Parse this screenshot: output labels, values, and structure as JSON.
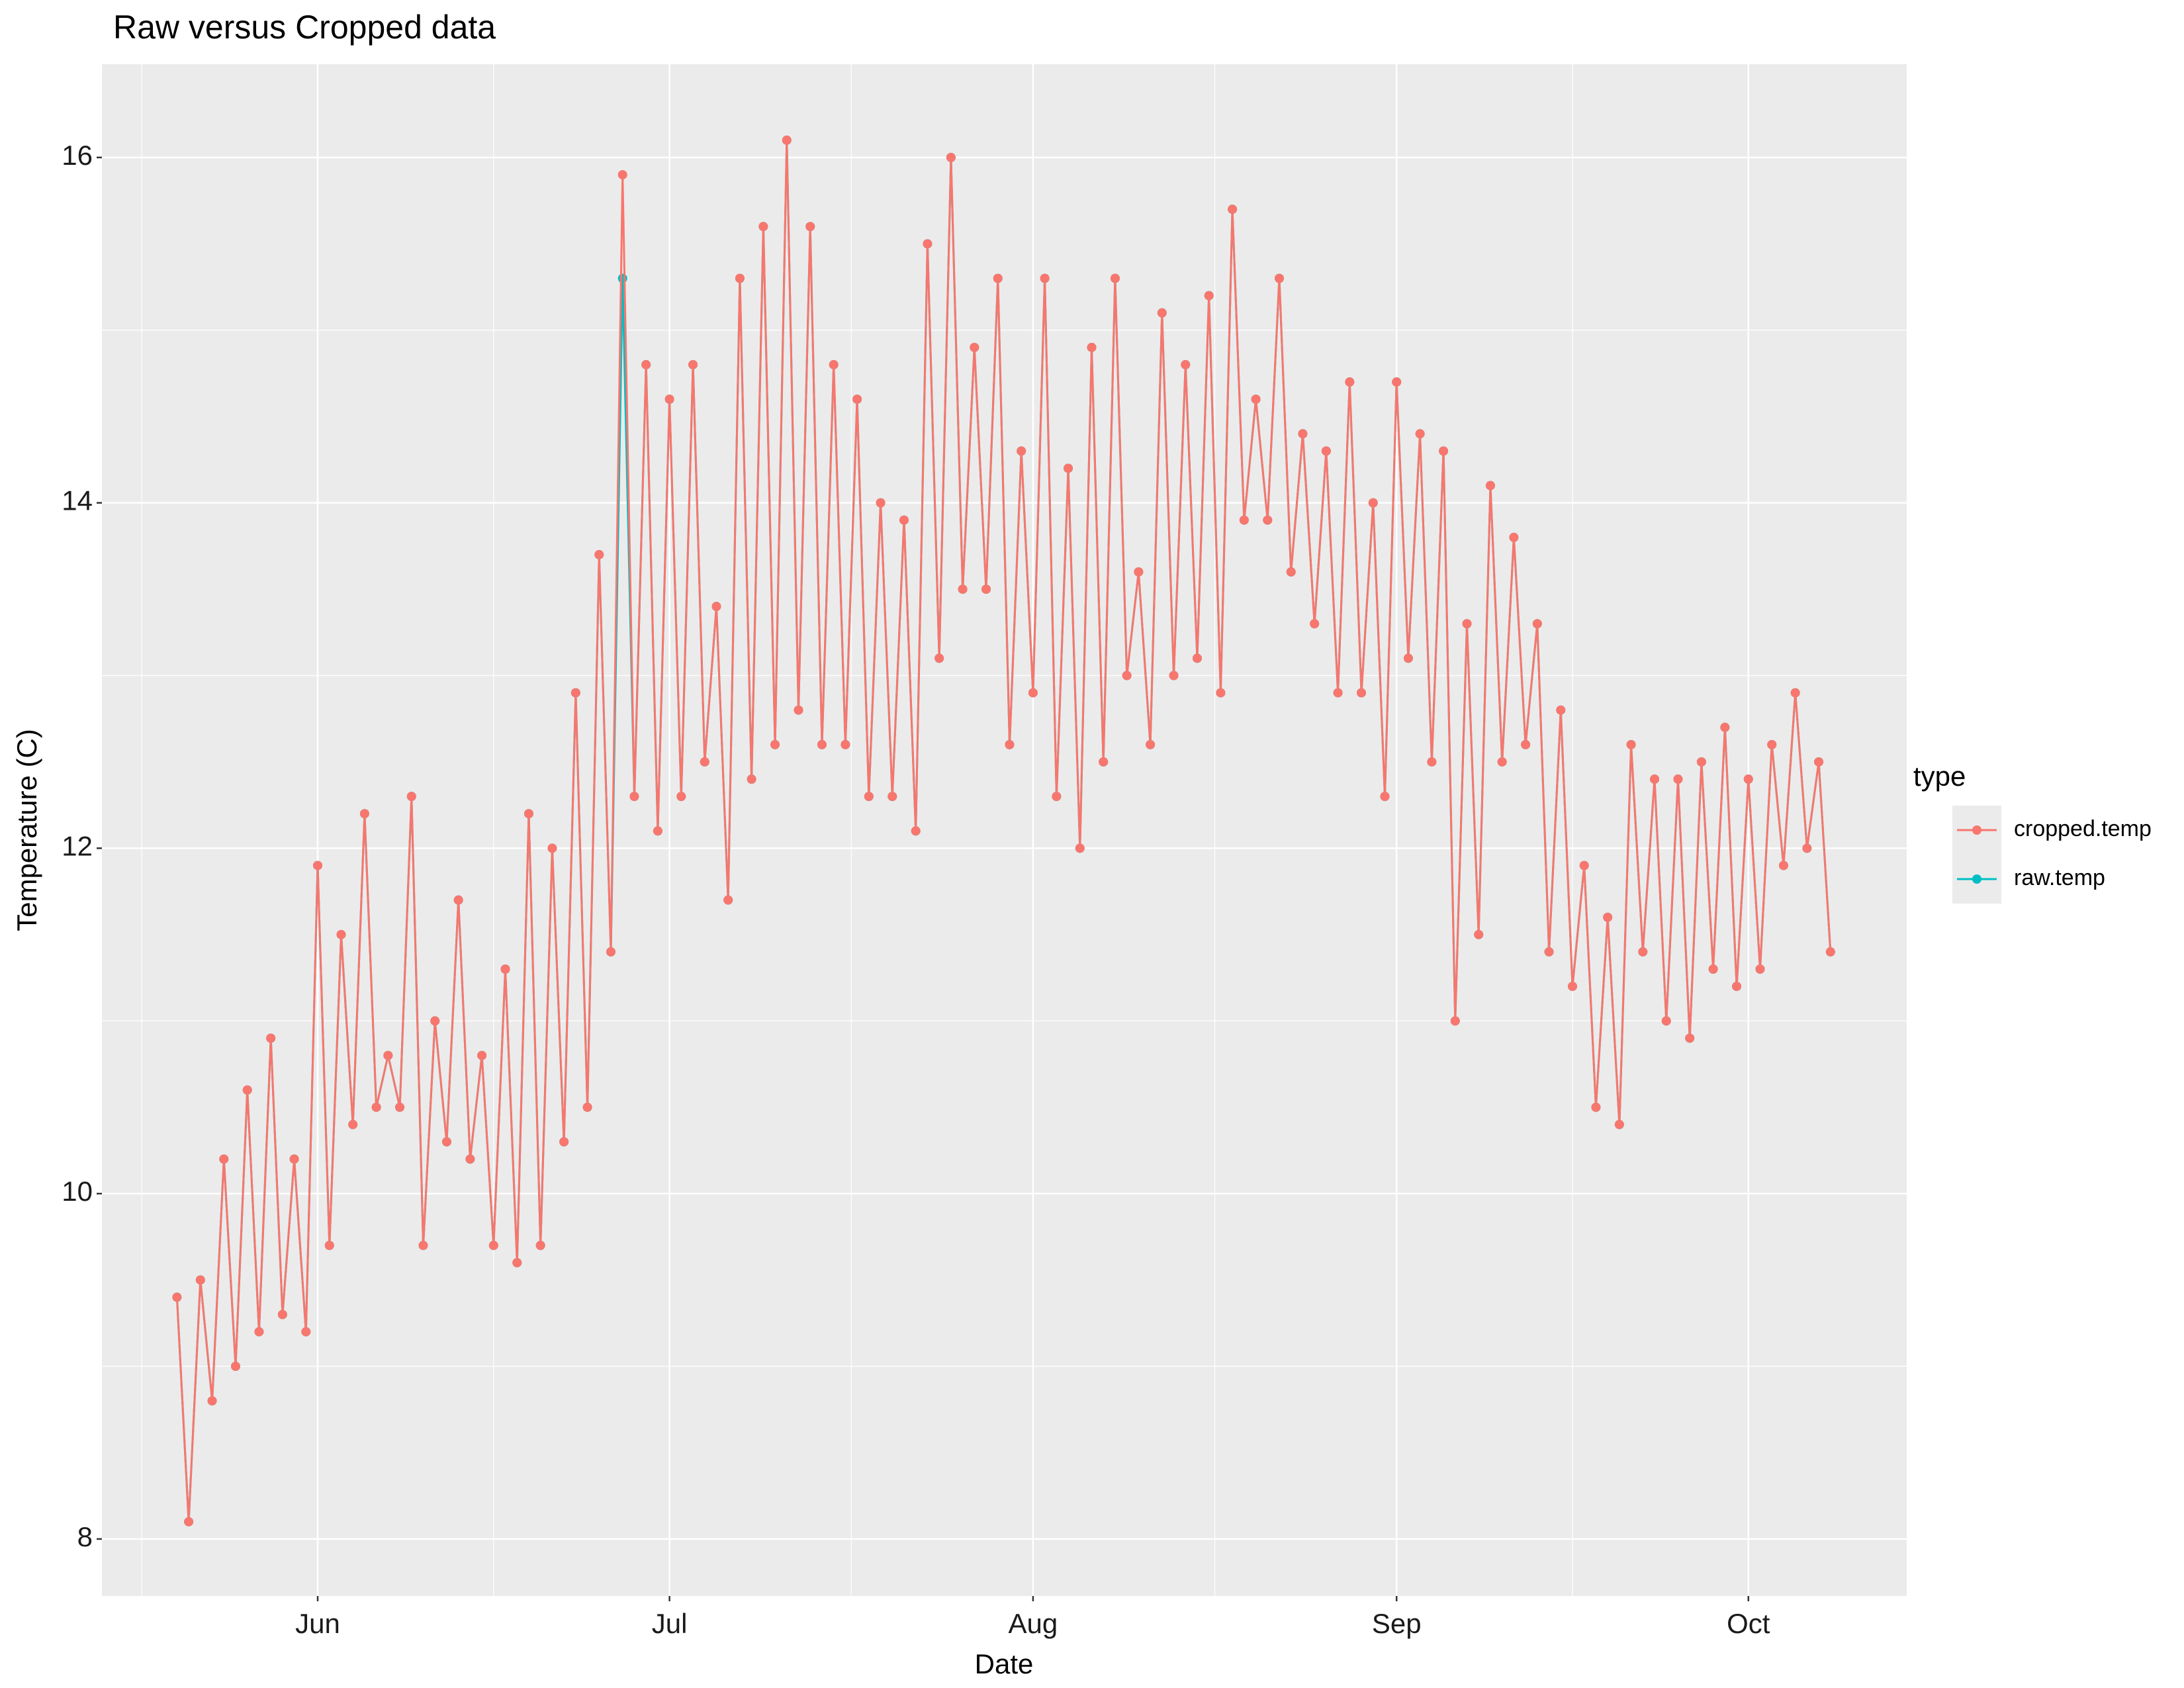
{
  "chart_data": {
    "type": "line",
    "title": "Raw versus Cropped data",
    "x_label": "Date",
    "y_label": "Temperature (C)",
    "legend_title": "type",
    "grid": true,
    "markers": true,
    "xlim": [
      -18.4,
      135.5
    ],
    "xticks": [
      {
        "value": 0,
        "label": "Jun"
      },
      {
        "value": 30,
        "label": "Jul"
      },
      {
        "value": 61,
        "label": "Aug"
      },
      {
        "value": 92,
        "label": "Sep"
      },
      {
        "value": 122,
        "label": "Oct"
      }
    ],
    "ylim": [
      7.67,
      16.54
    ],
    "yticks": [
      8,
      10,
      12,
      14,
      16
    ],
    "x": [
      -12,
      -11,
      -10,
      -9,
      -8,
      -7,
      -6,
      -5,
      -4,
      -3,
      -2,
      -1,
      0,
      1,
      2,
      3,
      4,
      5,
      6,
      7,
      8,
      9,
      10,
      11,
      12,
      13,
      14,
      15,
      16,
      17,
      18,
      19,
      20,
      21,
      22,
      23,
      24,
      25,
      26,
      27,
      28,
      29,
      30,
      31,
      32,
      33,
      34,
      35,
      36,
      37,
      38,
      39,
      40,
      41,
      42,
      43,
      44,
      45,
      46,
      47,
      48,
      49,
      50,
      51,
      52,
      53,
      54,
      55,
      56,
      57,
      58,
      59,
      60,
      61,
      62,
      63,
      64,
      65,
      66,
      67,
      68,
      69,
      70,
      71,
      72,
      73,
      74,
      75,
      76,
      77,
      78,
      79,
      80,
      81,
      82,
      83,
      84,
      85,
      86,
      87,
      88,
      89,
      90,
      91,
      92,
      93,
      94,
      95,
      96,
      97,
      98,
      99,
      100,
      101,
      102,
      103,
      104,
      105,
      106,
      107,
      108,
      109,
      110,
      111,
      112,
      113,
      114,
      115,
      116,
      117,
      118,
      119,
      120,
      121,
      122,
      123,
      124,
      125,
      126,
      127,
      128,
      129
    ],
    "series": [
      {
        "name": "cropped.temp",
        "color": "#F8766D",
        "values": [
          9.4,
          8.1,
          9.5,
          8.8,
          10.2,
          9.0,
          10.6,
          9.2,
          10.9,
          9.3,
          10.2,
          9.2,
          11.9,
          9.7,
          11.5,
          10.4,
          12.2,
          10.5,
          10.8,
          10.5,
          12.3,
          9.7,
          11.0,
          10.3,
          11.7,
          10.2,
          10.8,
          9.7,
          11.3,
          9.6,
          12.2,
          9.7,
          12.0,
          10.3,
          12.9,
          10.5,
          13.7,
          11.4,
          15.9,
          12.3,
          14.8,
          12.1,
          14.6,
          12.3,
          14.8,
          12.5,
          13.4,
          11.7,
          15.3,
          12.4,
          15.6,
          12.6,
          16.1,
          12.8,
          15.6,
          12.6,
          14.8,
          12.6,
          14.6,
          12.3,
          14.0,
          12.3,
          13.9,
          12.1,
          15.5,
          13.1,
          16.0,
          13.5,
          14.9,
          13.5,
          15.3,
          12.6,
          14.3,
          12.9,
          15.3,
          12.3,
          14.2,
          12.0,
          14.9,
          12.5,
          15.3,
          13.0,
          13.6,
          12.6,
          15.1,
          13.0,
          14.8,
          13.1,
          15.2,
          12.9,
          15.7,
          13.9,
          14.6,
          13.9,
          15.3,
          13.6,
          14.4,
          13.3,
          14.3,
          12.9,
          14.7,
          12.9,
          14.0,
          12.3,
          14.7,
          13.1,
          14.4,
          12.5,
          14.3,
          11.0,
          13.3,
          11.5,
          14.1,
          12.5,
          13.8,
          12.6,
          13.3,
          11.4,
          12.8,
          11.2,
          11.9,
          10.5,
          11.6,
          10.4,
          12.6,
          11.4,
          12.4,
          11.0,
          12.4,
          10.9,
          12.5,
          11.3,
          12.7,
          11.2,
          12.4,
          11.3,
          12.6,
          11.9,
          12.9,
          12.0,
          12.5,
          11.4
        ]
      },
      {
        "name": "raw.temp",
        "color": "#00BFC4",
        "values": [
          9.4,
          8.1,
          9.5,
          8.8,
          10.2,
          9.0,
          10.6,
          9.2,
          10.9,
          9.3,
          10.2,
          9.2,
          11.9,
          9.7,
          11.5,
          10.4,
          12.2,
          10.5,
          10.8,
          10.5,
          12.3,
          9.7,
          11.0,
          10.3,
          11.7,
          10.2,
          10.8,
          9.7,
          11.3,
          9.6,
          12.2,
          9.7,
          12.0,
          10.3,
          12.9,
          10.5,
          13.7,
          11.4,
          15.3,
          12.3,
          14.8,
          12.1,
          14.6,
          12.3,
          14.8,
          12.5,
          13.4,
          11.7,
          15.3,
          12.4,
          15.6,
          12.6,
          16.1,
          12.8,
          15.6,
          12.6,
          14.8,
          12.6,
          14.6,
          12.3,
          14.0,
          12.3,
          13.9,
          12.1,
          15.5,
          13.1,
          16.0,
          13.5,
          14.9,
          13.5,
          15.3,
          12.6,
          14.3,
          12.9,
          15.3,
          12.3,
          14.2,
          12.0,
          14.9,
          12.5,
          15.3,
          13.0,
          13.6,
          12.6,
          15.1,
          13.0,
          14.8,
          13.1,
          15.2,
          12.9,
          15.7,
          13.9,
          14.6,
          13.9,
          15.3,
          13.6,
          14.4,
          13.3,
          14.3,
          12.9,
          14.7,
          12.9,
          14.0,
          12.3,
          14.7,
          13.1,
          14.4,
          12.5,
          14.3,
          11.0,
          13.3,
          11.5,
          14.1,
          12.5,
          13.8,
          12.6,
          13.3,
          11.4,
          12.8,
          11.2,
          11.9,
          10.5,
          11.6,
          10.4,
          12.6,
          11.4,
          12.4,
          11.0,
          12.4,
          10.9,
          12.5,
          11.3,
          12.7,
          11.2,
          12.4,
          11.3,
          12.6,
          11.9,
          12.9,
          12.0,
          12.5,
          11.4
        ]
      }
    ]
  }
}
